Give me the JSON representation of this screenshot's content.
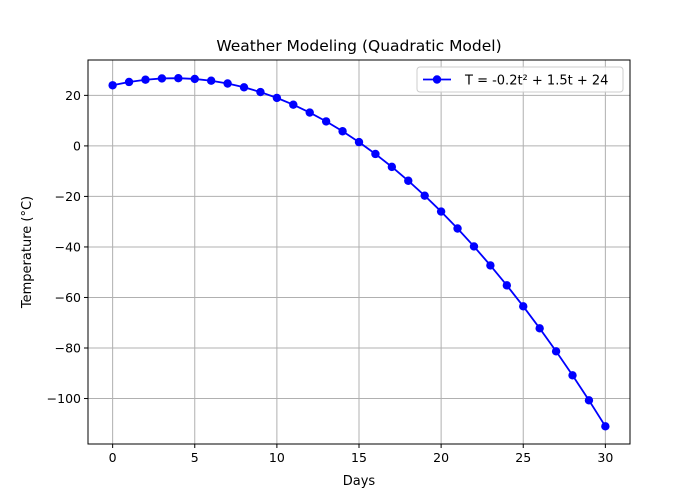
{
  "chart_data": {
    "type": "line",
    "title": "Weather Modeling (Quadratic Model)",
    "xlabel": "Days",
    "ylabel": "Temperature (°C)",
    "xlim": [
      -1.5,
      31.5
    ],
    "ylim": [
      -118,
      34
    ],
    "xticks": [
      0,
      5,
      10,
      15,
      20,
      25,
      30
    ],
    "yticks": [
      20,
      0,
      -20,
      -40,
      -60,
      -80,
      -100
    ],
    "ytick_labels": [
      "20",
      "0",
      "−20",
      "−40",
      "−60",
      "−80",
      "−100"
    ],
    "grid": true,
    "legend_position": "upper right",
    "series": [
      {
        "name": "T = -0.2t² + 1.5t + 24",
        "color": "#0000ff",
        "marker": "circle",
        "x": [
          0,
          1,
          2,
          3,
          4,
          5,
          6,
          7,
          8,
          9,
          10,
          11,
          12,
          13,
          14,
          15,
          16,
          17,
          18,
          19,
          20,
          21,
          22,
          23,
          24,
          25,
          26,
          27,
          28,
          29,
          30
        ],
        "y": [
          24,
          25.3,
          26.2,
          26.7,
          26.8,
          26.5,
          25.8,
          24.7,
          23.2,
          21.3,
          19,
          16.3,
          13.2,
          9.7,
          5.8,
          1.5,
          -3.2,
          -8.3,
          -13.8,
          -19.7,
          -26,
          -32.7,
          -39.8,
          -47.3,
          -55.2,
          -63.5,
          -72.2,
          -81.3,
          -90.8,
          -100.7,
          -111
        ]
      }
    ]
  }
}
